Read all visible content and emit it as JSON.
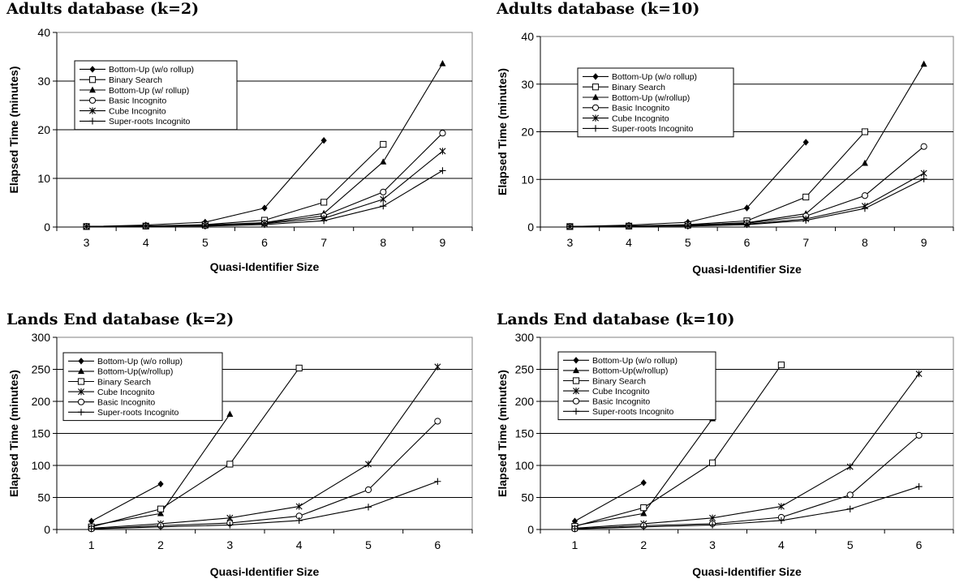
{
  "chart_data": [
    {
      "type": "line",
      "title": "Adults database (k=2)",
      "xlabel": "Quasi-Identifier Size",
      "ylabel": "Elapsed Time (minutes)",
      "categories": [
        "3",
        "4",
        "5",
        "6",
        "7",
        "8",
        "9"
      ],
      "ylim": [
        0,
        40
      ],
      "yticks": [
        0,
        10,
        20,
        30,
        40
      ],
      "grid": "horizontal",
      "legend_position": "upper-left",
      "series": [
        {
          "name": "Bottom-Up (w/o rollup)",
          "marker": "diamond",
          "values": [
            0.1,
            0.4,
            1.0,
            3.9,
            17.8,
            null,
            null
          ]
        },
        {
          "name": "Binary Search",
          "marker": "square-open",
          "values": [
            0.1,
            0.2,
            0.5,
            1.4,
            5.1,
            17.0,
            null
          ]
        },
        {
          "name": "Bottom-Up (w/ rollup)",
          "marker": "triangle",
          "values": [
            0.1,
            0.2,
            0.4,
            0.9,
            2.8,
            13.4,
            33.6
          ]
        },
        {
          "name": "Basic Incognito",
          "marker": "circle-open",
          "values": [
            0.1,
            0.2,
            0.3,
            0.8,
            2.3,
            7.2,
            19.3
          ]
        },
        {
          "name": "Cube Incognito",
          "marker": "asterisk",
          "values": [
            0.1,
            0.2,
            0.3,
            0.7,
            1.8,
            5.7,
            15.6
          ]
        },
        {
          "name": "Super-roots Incognito",
          "marker": "plus",
          "values": [
            0.1,
            0.2,
            0.2,
            0.5,
            1.3,
            4.3,
            11.6
          ]
        }
      ]
    },
    {
      "type": "line",
      "title": "Adults database (k=10)",
      "xlabel": "Quasi-Identifier Size",
      "ylabel": "Elapsed Time (minutes)",
      "categories": [
        "3",
        "4",
        "5",
        "6",
        "7",
        "8",
        "9"
      ],
      "ylim": [
        0,
        40
      ],
      "yticks": [
        0,
        10,
        20,
        30,
        40
      ],
      "grid": "horizontal",
      "legend_position": "upper-left",
      "series": [
        {
          "name": "Bottom-Up (w/o rollup)",
          "marker": "diamond",
          "values": [
            0.1,
            0.4,
            1.0,
            4.0,
            17.8,
            null,
            null
          ]
        },
        {
          "name": "Binary Search",
          "marker": "square-open",
          "values": [
            0.1,
            0.2,
            0.5,
            1.3,
            6.3,
            20.0,
            null
          ]
        },
        {
          "name": "Bottom-Up (w/rollup)",
          "marker": "triangle",
          "values": [
            0.1,
            0.2,
            0.4,
            0.9,
            2.8,
            13.4,
            34.2
          ]
        },
        {
          "name": "Basic Incognito",
          "marker": "circle-open",
          "values": [
            0.1,
            0.2,
            0.3,
            0.8,
            2.3,
            6.6,
            16.9
          ]
        },
        {
          "name": "Cube Incognito",
          "marker": "asterisk",
          "values": [
            0.1,
            0.2,
            0.3,
            0.6,
            1.7,
            4.4,
            11.3
          ]
        },
        {
          "name": "Super-roots Incognito",
          "marker": "plus",
          "values": [
            0.1,
            0.2,
            0.2,
            0.5,
            1.4,
            3.9,
            10.1
          ]
        }
      ]
    },
    {
      "type": "line",
      "title": "Lands End database (k=2)",
      "xlabel": "Quasi-Identifier Size",
      "ylabel": "Elapsed Time (minutes)",
      "categories": [
        "1",
        "2",
        "3",
        "4",
        "5",
        "6"
      ],
      "ylim": [
        0,
        300
      ],
      "yticks": [
        0,
        50,
        100,
        150,
        200,
        250,
        300
      ],
      "grid": "horizontal",
      "legend_position": "upper-left",
      "series": [
        {
          "name": "Bottom-Up (w/o rollup)",
          "marker": "diamond",
          "values": [
            13,
            71,
            null,
            null,
            null,
            null
          ]
        },
        {
          "name": "Bottom-Up(w/rollup)",
          "marker": "triangle",
          "values": [
            6,
            25,
            180,
            null,
            null,
            null
          ]
        },
        {
          "name": "Binary Search",
          "marker": "square-open",
          "values": [
            4,
            32,
            102,
            252,
            null,
            null
          ]
        },
        {
          "name": "Cube Incognito",
          "marker": "asterisk",
          "values": [
            2,
            9,
            18,
            36,
            102,
            254
          ]
        },
        {
          "name": "Basic Incognito",
          "marker": "circle-open",
          "values": [
            1,
            6,
            10,
            21,
            62,
            169
          ]
        },
        {
          "name": "Super-roots Incognito",
          "marker": "plus",
          "values": [
            1,
            4,
            7,
            14,
            35,
            75
          ]
        }
      ]
    },
    {
      "type": "line",
      "title": "Lands End database (k=10)",
      "xlabel": "Quasi-Identifier Size",
      "ylabel": "Elapsed Time (minutes)",
      "categories": [
        "1",
        "2",
        "3",
        "4",
        "5",
        "6"
      ],
      "ylim": [
        0,
        300
      ],
      "yticks": [
        0,
        50,
        100,
        150,
        200,
        250,
        300
      ],
      "grid": "horizontal",
      "legend_position": "upper-left",
      "series": [
        {
          "name": "Bottom-Up (w/o rollup)",
          "marker": "diamond",
          "values": [
            13,
            73,
            null,
            null,
            null,
            null
          ]
        },
        {
          "name": "Bottom-Up(w/rollup)",
          "marker": "triangle",
          "values": [
            6,
            25,
            173,
            null,
            null,
            null
          ]
        },
        {
          "name": "Binary Search",
          "marker": "square-open",
          "values": [
            5,
            34,
            104,
            257,
            null,
            null
          ]
        },
        {
          "name": "Cube Incognito",
          "marker": "asterisk",
          "values": [
            2,
            9,
            18,
            36,
            98,
            243
          ]
        },
        {
          "name": "Basic Incognito",
          "marker": "circle-open",
          "values": [
            1,
            6,
            9,
            19,
            54,
            147
          ]
        },
        {
          "name": "Super-roots Incognito",
          "marker": "plus",
          "values": [
            1,
            4,
            7,
            14,
            32,
            67
          ]
        }
      ]
    }
  ]
}
